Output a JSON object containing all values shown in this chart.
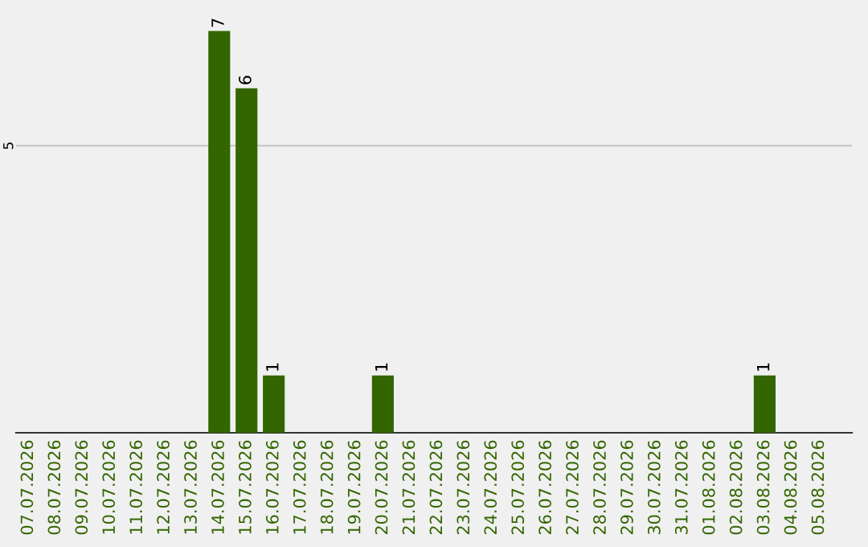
{
  "chart_data": {
    "type": "bar",
    "categories": [
      "07.07.2026",
      "08.07.2026",
      "09.07.2026",
      "10.07.2026",
      "11.07.2026",
      "12.07.2026",
      "13.07.2026",
      "14.07.2026",
      "15.07.2026",
      "16.07.2026",
      "17.07.2026",
      "18.07.2026",
      "19.07.2026",
      "20.07.2026",
      "21.07.2026",
      "22.07.2026",
      "23.07.2026",
      "24.07.2026",
      "25.07.2026",
      "26.07.2026",
      "27.07.2026",
      "28.07.2026",
      "29.07.2026",
      "30.07.2026",
      "31.07.2026",
      "01.08.2026",
      "02.08.2026",
      "03.08.2026",
      "04.08.2026",
      "05.08.2026"
    ],
    "values": [
      0,
      0,
      0,
      0,
      0,
      0,
      0,
      7,
      6,
      1,
      0,
      0,
      0,
      1,
      0,
      0,
      0,
      0,
      0,
      0,
      0,
      0,
      0,
      0,
      0,
      0,
      0,
      1,
      0,
      0
    ],
    "color": "#336600",
    "value_labels": [
      null,
      null,
      null,
      null,
      null,
      null,
      null,
      "7",
      "6",
      "1",
      null,
      null,
      null,
      "1",
      null,
      null,
      null,
      null,
      null,
      null,
      null,
      null,
      null,
      null,
      null,
      null,
      null,
      "1",
      null,
      null
    ],
    "ref_lines": [
      {
        "axis": "y",
        "value": 5,
        "label": "5",
        "color": "#c8c8c8"
      }
    ]
  }
}
